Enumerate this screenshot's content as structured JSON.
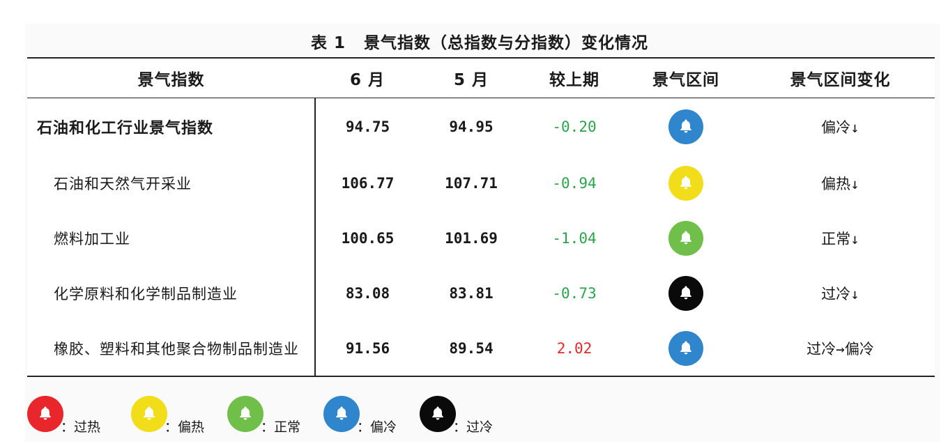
{
  "caption": {
    "number": "表 1",
    "title": "景气指数（总指数与分指数）变化情况"
  },
  "columns": [
    "景气指数",
    "6 月",
    "5 月",
    "较上期",
    "景气区间",
    "景气区间变化"
  ],
  "rows": [
    {
      "name": "石油和化工行业景气指数",
      "main": true,
      "june": "94.75",
      "may": "94.95",
      "change": "-0.20",
      "change_color": "#2aa44a",
      "zone": "cool",
      "trend": "偏冷↓"
    },
    {
      "name": "石油和天然气开采业",
      "main": false,
      "june": "106.77",
      "may": "107.71",
      "change": "-0.94",
      "change_color": "#2aa44a",
      "zone": "warm",
      "trend": "偏热↓"
    },
    {
      "name": "燃料加工业",
      "main": false,
      "june": "100.65",
      "may": "101.69",
      "change": "-1.04",
      "change_color": "#2aa44a",
      "zone": "normal",
      "trend": "正常↓"
    },
    {
      "name": "化学原料和化学制品制造业",
      "main": false,
      "june": "83.08",
      "may": "83.81",
      "change": "-0.73",
      "change_color": "#2aa44a",
      "zone": "cold",
      "trend": "过冷↓"
    },
    {
      "name": "橡胶、塑料和其他聚合物制品制造业",
      "main": false,
      "june": "91.56",
      "may": "89.54",
      "change": "2.02",
      "change_color": "#e8262b",
      "zone": "cool",
      "trend": "过冷→偏冷"
    }
  ],
  "zone_colors": {
    "hot": "#e8262b",
    "warm": "#f2dd1b",
    "normal": "#6fbf4a",
    "cool": "#2f86cd",
    "cold": "#0a0a0a"
  },
  "icon": "bell-icon",
  "legend": [
    {
      "zone": "hot",
      "label": "：过热"
    },
    {
      "zone": "warm",
      "label": "：偏热"
    },
    {
      "zone": "normal",
      "label": "：正常"
    },
    {
      "zone": "cool",
      "label": "：偏冷"
    },
    {
      "zone": "cold",
      "label": "：过冷"
    }
  ]
}
